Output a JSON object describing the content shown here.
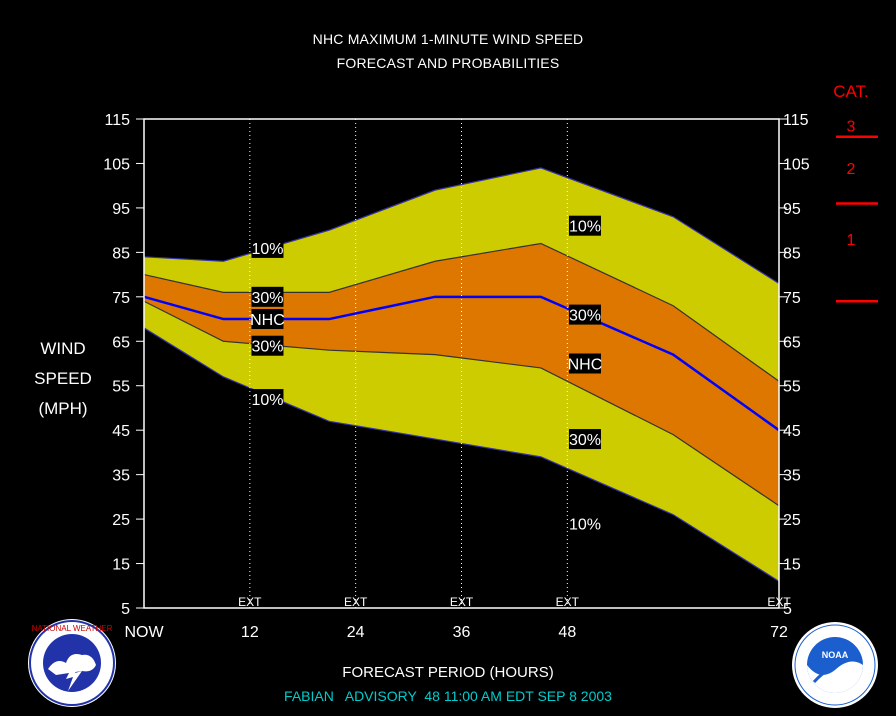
{
  "header": {
    "title_line1": "NHC MAXIMUM 1-MINUTE WIND SPEED",
    "title_line2": "FORECAST AND PROBABILITIES"
  },
  "footer": {
    "xlabel": "FORECAST PERIOD (HOURS)",
    "advisory": "FABIAN   ADVISORY  48 11:00 AM EDT SEP 8 2003"
  },
  "category_scale": {
    "title": "CAT.",
    "labels": [
      "3",
      "2",
      "1"
    ],
    "thresholds_mph": [
      111,
      96,
      74
    ],
    "color": "#ff0000"
  },
  "logos": {
    "left": "nws-logo",
    "right": "noaa-logo"
  },
  "colors": {
    "background": "#000000",
    "band_outer": "#cccc00",
    "band_inner": "#dd7700",
    "nhc_line": "#0000ff",
    "advisory_text": "#00cccc",
    "category": "#ff0000"
  },
  "chart_data": {
    "type": "area",
    "title": "NHC MAXIMUM 1-MINUTE WIND SPEED FORECAST AND PROBABILITIES",
    "xlabel": "FORECAST PERIOD (HOURS)",
    "ylabel": [
      "WIND",
      "SPEED",
      "(MPH)"
    ],
    "x_ticks": [
      0,
      12,
      24,
      36,
      48,
      72
    ],
    "x_tick_labels": [
      "NOW",
      "12",
      "24",
      "36",
      "48",
      "72"
    ],
    "ext_markers": [
      12,
      24,
      36,
      48,
      72
    ],
    "ext_label": "EXT",
    "y_ticks": [
      5,
      15,
      25,
      35,
      45,
      55,
      65,
      75,
      85,
      95,
      105,
      115
    ],
    "ylim": [
      5,
      115
    ],
    "xlim": [
      0,
      72
    ],
    "x": [
      0,
      9,
      21,
      33,
      45,
      60,
      72
    ],
    "series": [
      {
        "name": "10%",
        "role": "upper",
        "values": [
          84,
          83,
          90,
          99,
          104,
          93,
          78
        ]
      },
      {
        "name": "30%",
        "role": "upper",
        "values": [
          80,
          76,
          76,
          83,
          87,
          73,
          56
        ]
      },
      {
        "name": "NHC",
        "role": "forecast",
        "values": [
          75,
          70,
          70,
          75,
          75,
          62,
          45
        ]
      },
      {
        "name": "30%",
        "role": "lower",
        "values": [
          74,
          65,
          63,
          62,
          59,
          44,
          28
        ]
      },
      {
        "name": "10%",
        "role": "lower",
        "values": [
          68,
          57,
          47,
          43,
          39,
          26,
          11
        ]
      }
    ],
    "labels": [
      {
        "text": "10%",
        "x": 14,
        "y": 86
      },
      {
        "text": "30%",
        "x": 14,
        "y": 75
      },
      {
        "text": "NHC",
        "x": 14,
        "y": 70
      },
      {
        "text": "30%",
        "x": 14,
        "y": 64
      },
      {
        "text": "10%",
        "x": 14,
        "y": 52
      },
      {
        "text": "10%",
        "x": 50,
        "y": 91
      },
      {
        "text": "30%",
        "x": 50,
        "y": 71
      },
      {
        "text": "NHC",
        "x": 50,
        "y": 60
      },
      {
        "text": "30%",
        "x": 50,
        "y": 43
      },
      {
        "text": "10%",
        "x": 50,
        "y": 24
      }
    ],
    "grid": false,
    "legend": "none"
  }
}
